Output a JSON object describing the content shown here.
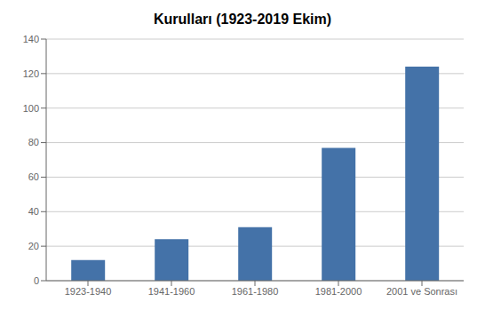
{
  "chart_data": {
    "type": "bar",
    "title": "Kurulları (1923-2019 Ekim)",
    "categories": [
      "1923-1940",
      "1941-1960",
      "1961-1980",
      "1981-2000",
      "2001 ve Sonrası"
    ],
    "values": [
      12,
      24,
      31,
      77,
      124
    ],
    "color": "#4472a8",
    "ylim": [
      0,
      140
    ],
    "yticks": [
      0,
      20,
      40,
      60,
      80,
      100,
      120,
      140
    ],
    "grid": true
  }
}
